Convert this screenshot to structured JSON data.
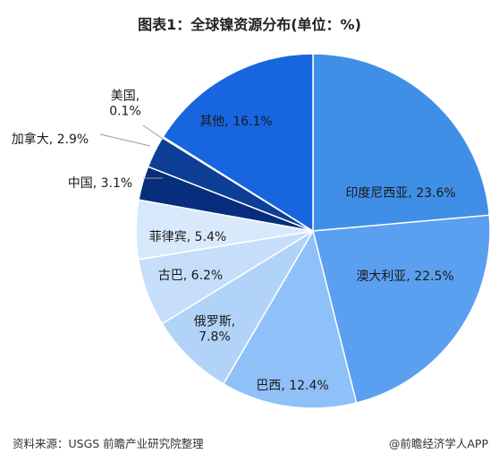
{
  "chart_data": {
    "type": "pie",
    "title": "图表1：全球镍资源分布(单位：%)",
    "slices": [
      {
        "label": "印度尼西亚",
        "value": 23.6,
        "display": "印度尼西亚, 23.6%",
        "color": "#3f8fe6"
      },
      {
        "label": "澳大利亚",
        "value": 22.5,
        "display": "澳大利亚, 22.5%",
        "color": "#5b9ff0"
      },
      {
        "label": "巴西",
        "value": 12.4,
        "display": "巴西, 12.4%",
        "color": "#8fc0f7"
      },
      {
        "label": "俄罗斯",
        "value": 7.8,
        "display": "俄罗斯,|7.8%",
        "color": "#b2d3f8"
      },
      {
        "label": "古巴",
        "value": 6.2,
        "display": "古巴, 6.2%",
        "color": "#c6def9"
      },
      {
        "label": "菲律宾",
        "value": 5.4,
        "display": "菲律宾, 5.4%",
        "color": "#d8e9fb"
      },
      {
        "label": "中国",
        "value": 3.1,
        "display": "中国, 3.1%",
        "color": "#062e7d"
      },
      {
        "label": "加拿大",
        "value": 2.9,
        "display": "加拿大, 2.9%",
        "color": "#0d3f96"
      },
      {
        "label": "美国",
        "value": 0.1,
        "display": "美国,|0.1%",
        "color": "#1c56bf"
      },
      {
        "label": "其他",
        "value": 16.1,
        "display": "其他, 16.1%",
        "color": "#1766e0"
      }
    ]
  },
  "source": "资料来源：USGS 前瞻产业研究院整理",
  "credit": "@前瞻经济学人APP"
}
